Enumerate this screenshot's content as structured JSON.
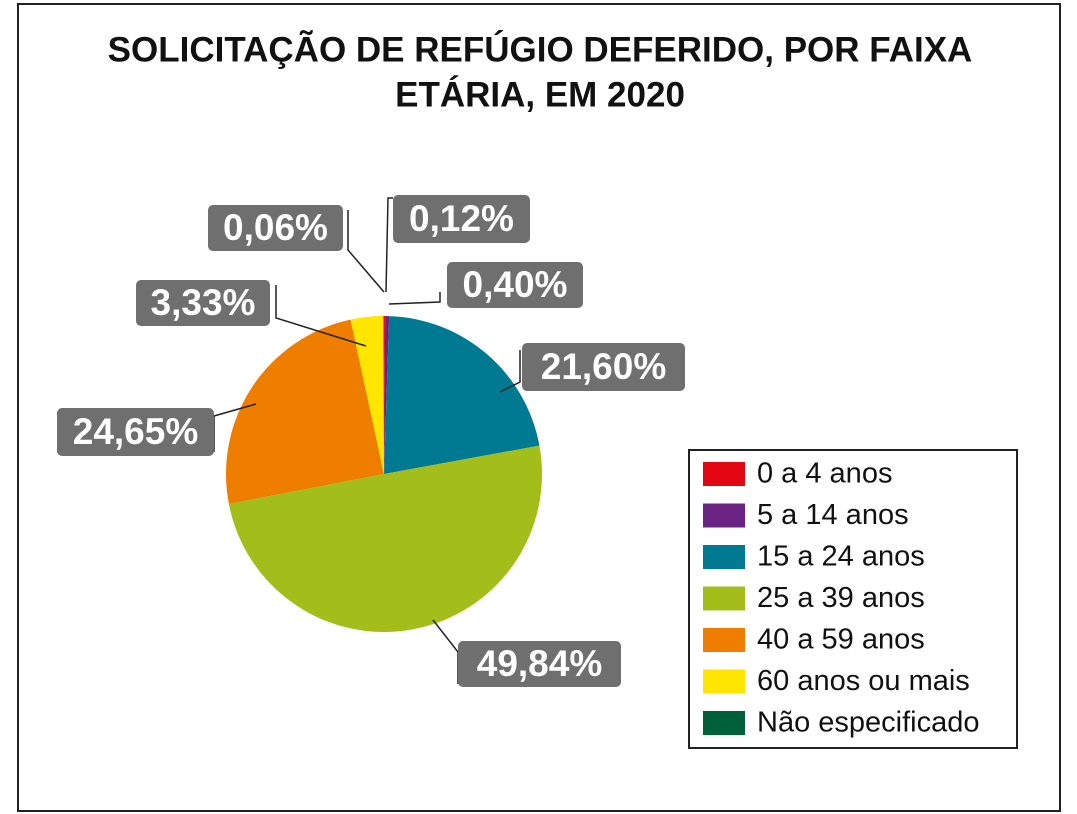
{
  "chart_data": {
    "type": "pie",
    "title": [
      "SOLICITAÇÃO DE REFÚGIO DEFERIDO, POR FAIXA",
      "ETÁRIA, EM 2020"
    ],
    "categories": [
      "0 a 4 anos",
      "5 a 14 anos",
      "15 a 24 anos",
      "25 a 39 anos",
      "40 a 59 anos",
      "60 anos ou mais",
      "Não especificado"
    ],
    "values": [
      0.12,
      0.4,
      21.6,
      49.84,
      24.65,
      3.33,
      0.06
    ],
    "value_labels": [
      "0,12%",
      "0,40%",
      "21,60%",
      "49,84%",
      "24,65%",
      "3,33%",
      "0,06%"
    ],
    "colors": [
      "#e30613",
      "#6a2383",
      "#007a93",
      "#a3bd1b",
      "#ef7d00",
      "#ffe500",
      "#00603a"
    ],
    "legend": "right"
  }
}
